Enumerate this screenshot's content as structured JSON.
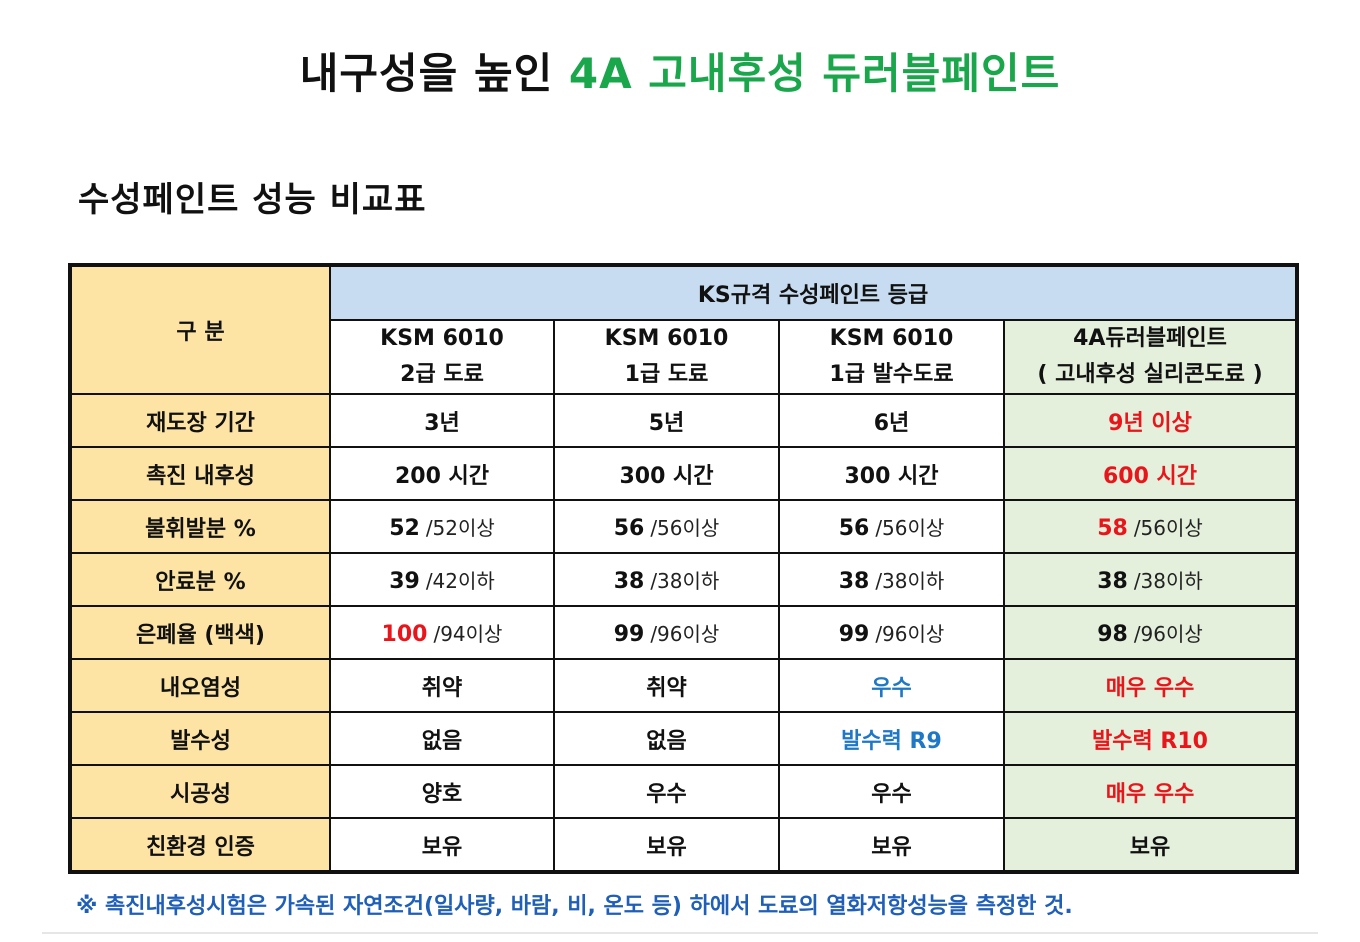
{
  "headline": {
    "prefix": "내구성을 높인",
    "accent": "4A 고내후성 듀러블페인트"
  },
  "subtitle": "수성페인트 성능 비교표",
  "table": {
    "corner_label": "구 분",
    "group_header": "KS규격 수성페인트 등급",
    "columns": [
      {
        "line1": "KSM 6010",
        "line2": "2급 도료"
      },
      {
        "line1": "KSM 6010",
        "line2": "1급 도료"
      },
      {
        "line1": "KSM 6010",
        "line2": "1급 발수도료"
      },
      {
        "line1": "4A듀러블페인트",
        "line2": "( 고내후성 실리콘도료 )"
      }
    ],
    "rows": [
      {
        "label": "재도장 기간",
        "cells": [
          {
            "main": "3년",
            "color": "default"
          },
          {
            "main": "5년",
            "color": "default"
          },
          {
            "main": "6년",
            "color": "default"
          },
          {
            "main": "9년 이상",
            "color": "red"
          }
        ]
      },
      {
        "label": "촉진 내후성",
        "cells": [
          {
            "main": "200 시간",
            "color": "default"
          },
          {
            "main": "300 시간",
            "color": "default"
          },
          {
            "main": "300 시간",
            "color": "default"
          },
          {
            "main": "600 시간",
            "color": "red"
          }
        ]
      },
      {
        "label": "불휘발분 %",
        "cells": [
          {
            "main": "52",
            "sub": "/52이상",
            "color": "default"
          },
          {
            "main": "56",
            "sub": "/56이상",
            "color": "default"
          },
          {
            "main": "56",
            "sub": "/56이상",
            "color": "default"
          },
          {
            "main": "58",
            "sub": "/56이상",
            "color": "red"
          }
        ]
      },
      {
        "label": "안료분 %",
        "cells": [
          {
            "main": "39",
            "sub": "/42이하",
            "color": "default"
          },
          {
            "main": "38",
            "sub": "/38이하",
            "color": "default"
          },
          {
            "main": "38",
            "sub": "/38이하",
            "color": "default"
          },
          {
            "main": "38",
            "sub": "/38이하",
            "color": "default"
          }
        ]
      },
      {
        "label": "은폐율 (백색)",
        "cells": [
          {
            "main": "100",
            "sub": "/94이상",
            "color": "red"
          },
          {
            "main": "99",
            "sub": "/96이상",
            "color": "default"
          },
          {
            "main": "99",
            "sub": "/96이상",
            "color": "default"
          },
          {
            "main": "98",
            "sub": "/96이상",
            "color": "default"
          }
        ]
      },
      {
        "label": "내오염성",
        "cells": [
          {
            "main": "취약",
            "color": "default"
          },
          {
            "main": "취약",
            "color": "default"
          },
          {
            "main": "우수",
            "color": "blue"
          },
          {
            "main": "매우 우수",
            "color": "red"
          }
        ]
      },
      {
        "label": "발수성",
        "cells": [
          {
            "main": "없음",
            "color": "default"
          },
          {
            "main": "없음",
            "color": "default"
          },
          {
            "main": "발수력 R9",
            "color": "blue"
          },
          {
            "main": "발수력 R10",
            "color": "red"
          }
        ]
      },
      {
        "label": "시공성",
        "cells": [
          {
            "main": "양호",
            "color": "default"
          },
          {
            "main": "우수",
            "color": "default"
          },
          {
            "main": "우수",
            "color": "default"
          },
          {
            "main": "매우 우수",
            "color": "red"
          }
        ]
      },
      {
        "label": "친환경 인증",
        "cells": [
          {
            "main": "보유",
            "color": "default"
          },
          {
            "main": "보유",
            "color": "default"
          },
          {
            "main": "보유",
            "color": "default"
          },
          {
            "main": "보유",
            "color": "default"
          }
        ]
      }
    ]
  },
  "footnote": "※ 촉진내후성시험은 가속된 자연조건(일사량, 바람, 비, 온도 등) 하에서 도료의 열화저항성능을 측정한 것.",
  "colors": {
    "accent_green": "#1aa64a",
    "highlight_red": "#e8161b",
    "highlight_blue": "#1f78c6",
    "label_column_bg": "#fde4a5",
    "group_header_bg": "#c7dcf0",
    "highlight_column_bg": "#e4efdc",
    "footnote_text": "#1f5fb8"
  }
}
